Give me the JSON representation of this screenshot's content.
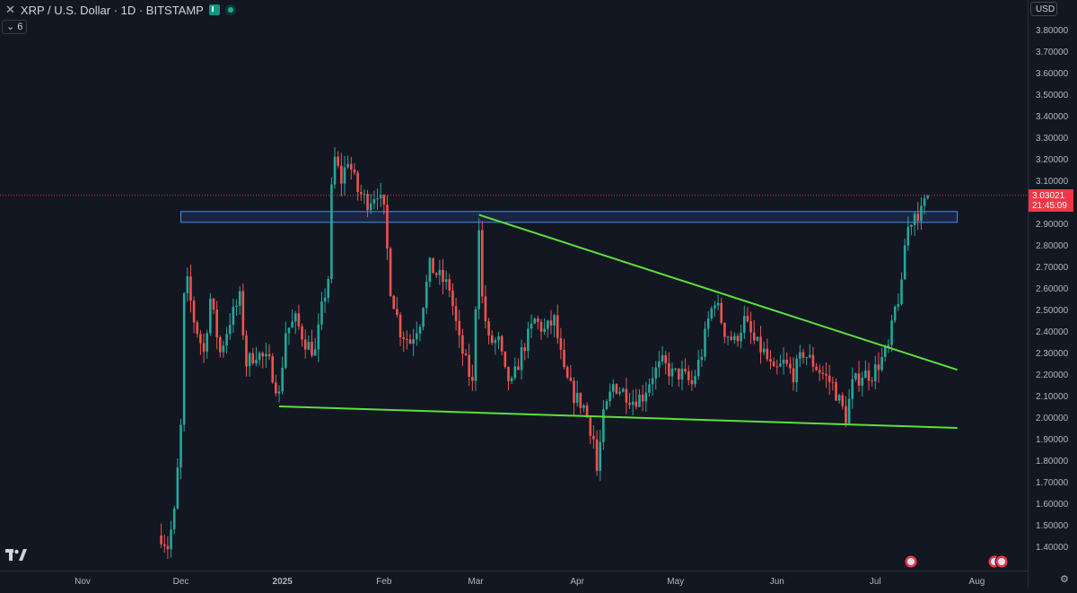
{
  "header": {
    "symbol": "XRP / U.S. Dollar · 1D · BITSTAMP",
    "indicator_count": "6",
    "currency": "USD"
  },
  "price_tag": {
    "price": "3.03021",
    "countdown": "21:45:09"
  },
  "colors": {
    "up": "#26a69a",
    "down": "#ef5350",
    "trendline": "#5be13a",
    "zone_fill": "#1e3a6e",
    "zone_border": "#4a8fe0",
    "last_price_line": "#f23645",
    "background": "#131722"
  },
  "chart_data": {
    "type": "candlestick",
    "title": "XRP / U.S. Dollar · 1D · BITSTAMP",
    "y_ticks": [
      "1.40000",
      "1.50000",
      "1.60000",
      "1.70000",
      "1.80000",
      "1.90000",
      "2.00000",
      "2.10000",
      "2.20000",
      "2.30000",
      "2.40000",
      "2.50000",
      "2.60000",
      "2.70000",
      "2.80000",
      "2.90000",
      "3.00000",
      "3.10000",
      "3.20000",
      "3.30000",
      "3.40000",
      "3.50000",
      "3.60000",
      "3.70000",
      "3.80000"
    ],
    "x_ticks": [
      "Nov",
      "Dec",
      "2025",
      "Feb",
      "Mar",
      "Apr",
      "May",
      "Jun",
      "Jul",
      "Aug"
    ],
    "x_tick_dates": [
      "2024-11-01",
      "2024-12-01",
      "2025-01-01",
      "2025-02-01",
      "2025-03-01",
      "2025-04-01",
      "2025-05-01",
      "2025-06-01",
      "2025-07-01",
      "2025-08-01"
    ],
    "ylim": [
      1.35,
      3.83
    ],
    "last_price": 3.03021,
    "anchors": [
      [
        "2024-11-25",
        1.45
      ],
      [
        "2024-11-27",
        1.4
      ],
      [
        "2024-11-29",
        1.55
      ],
      [
        "2024-12-01",
        1.95
      ],
      [
        "2024-12-02",
        2.55
      ],
      [
        "2024-12-03",
        2.62
      ],
      [
        "2024-12-05",
        2.45
      ],
      [
        "2024-12-08",
        2.3
      ],
      [
        "2024-12-10",
        2.55
      ],
      [
        "2024-12-13",
        2.3
      ],
      [
        "2024-12-16",
        2.45
      ],
      [
        "2024-12-19",
        2.55
      ],
      [
        "2024-12-21",
        2.25
      ],
      [
        "2024-12-24",
        2.3
      ],
      [
        "2024-12-28",
        2.25
      ],
      [
        "2024-12-31",
        2.1
      ],
      [
        "2025-01-02",
        2.4
      ],
      [
        "2025-01-05",
        2.45
      ],
      [
        "2025-01-08",
        2.35
      ],
      [
        "2025-01-11",
        2.3
      ],
      [
        "2025-01-13",
        2.5
      ],
      [
        "2025-01-15",
        2.65
      ],
      [
        "2025-01-16",
        3.05
      ],
      [
        "2025-01-17",
        3.2
      ],
      [
        "2025-01-19",
        3.1
      ],
      [
        "2025-01-21",
        3.2
      ],
      [
        "2025-01-24",
        3.05
      ],
      [
        "2025-01-27",
        3.0
      ],
      [
        "2025-01-30",
        3.05
      ],
      [
        "2025-02-01",
        2.95
      ],
      [
        "2025-02-03",
        2.6
      ],
      [
        "2025-02-06",
        2.4
      ],
      [
        "2025-02-09",
        2.35
      ],
      [
        "2025-02-12",
        2.45
      ],
      [
        "2025-02-15",
        2.7
      ],
      [
        "2025-02-18",
        2.65
      ],
      [
        "2025-02-21",
        2.6
      ],
      [
        "2025-02-24",
        2.35
      ],
      [
        "2025-02-26",
        2.25
      ],
      [
        "2025-02-28",
        2.15
      ],
      [
        "2025-03-02",
        2.9
      ],
      [
        "2025-03-03",
        2.55
      ],
      [
        "2025-03-05",
        2.35
      ],
      [
        "2025-03-08",
        2.35
      ],
      [
        "2025-03-10",
        2.2
      ],
      [
        "2025-03-12",
        2.15
      ],
      [
        "2025-03-15",
        2.3
      ],
      [
        "2025-03-19",
        2.45
      ],
      [
        "2025-03-22",
        2.4
      ],
      [
        "2025-03-25",
        2.45
      ],
      [
        "2025-03-28",
        2.2
      ],
      [
        "2025-03-31",
        2.1
      ],
      [
        "2025-04-03",
        2.05
      ],
      [
        "2025-04-06",
        1.9
      ],
      [
        "2025-04-07",
        1.75
      ],
      [
        "2025-04-09",
        2.0
      ],
      [
        "2025-04-12",
        2.15
      ],
      [
        "2025-04-15",
        2.12
      ],
      [
        "2025-04-18",
        2.08
      ],
      [
        "2025-04-21",
        2.1
      ],
      [
        "2025-04-24",
        2.2
      ],
      [
        "2025-04-27",
        2.25
      ],
      [
        "2025-04-30",
        2.2
      ],
      [
        "2025-05-03",
        2.2
      ],
      [
        "2025-05-06",
        2.15
      ],
      [
        "2025-05-09",
        2.3
      ],
      [
        "2025-05-11",
        2.45
      ],
      [
        "2025-05-13",
        2.55
      ],
      [
        "2025-05-16",
        2.4
      ],
      [
        "2025-05-19",
        2.35
      ],
      [
        "2025-05-22",
        2.45
      ],
      [
        "2025-05-25",
        2.35
      ],
      [
        "2025-05-28",
        2.3
      ],
      [
        "2025-05-31",
        2.2
      ],
      [
        "2025-06-03",
        2.25
      ],
      [
        "2025-06-06",
        2.2
      ],
      [
        "2025-06-09",
        2.3
      ],
      [
        "2025-06-12",
        2.25
      ],
      [
        "2025-06-15",
        2.2
      ],
      [
        "2025-06-18",
        2.15
      ],
      [
        "2025-06-22",
        2.0
      ],
      [
        "2025-06-24",
        2.15
      ],
      [
        "2025-06-27",
        2.2
      ],
      [
        "2025-06-30",
        2.2
      ],
      [
        "2025-07-03",
        2.27
      ],
      [
        "2025-07-05",
        2.32
      ],
      [
        "2025-07-07",
        2.5
      ],
      [
        "2025-07-09",
        2.6
      ],
      [
        "2025-07-10",
        2.8
      ],
      [
        "2025-07-11",
        2.88
      ],
      [
        "2025-07-13",
        2.95
      ],
      [
        "2025-07-15",
        2.95
      ],
      [
        "2025-07-17",
        3.03
      ]
    ],
    "trendlines": [
      {
        "name": "descending-resistance",
        "from": [
          "2025-03-02",
          2.94
        ],
        "to": [
          "2025-07-26",
          2.22
        ]
      },
      {
        "name": "support",
        "from": [
          "2024-12-31",
          2.05
        ],
        "to": [
          "2025-07-26",
          1.95
        ]
      }
    ],
    "zone": {
      "from": "2024-12-01",
      "to": "2025-07-26",
      "top": 2.955,
      "bottom": 2.905
    }
  }
}
